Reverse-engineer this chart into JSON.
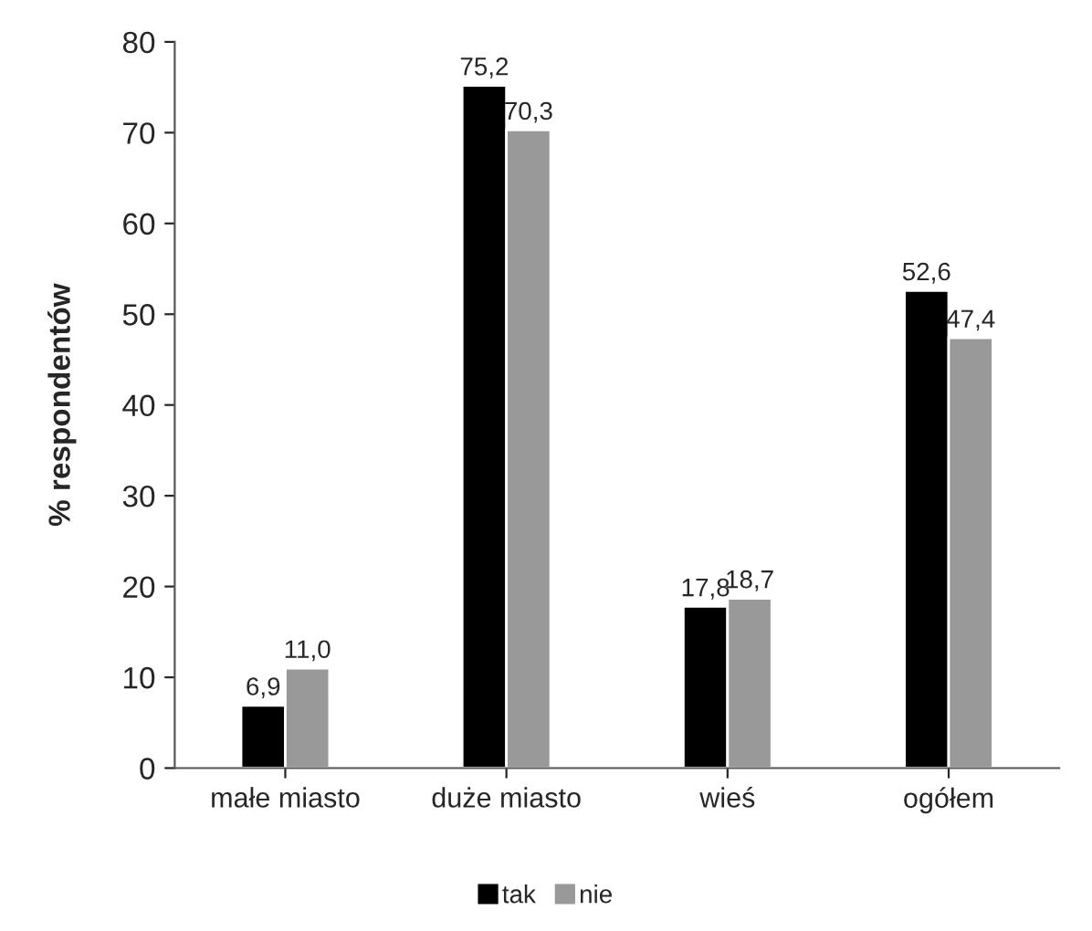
{
  "chart_data": {
    "type": "bar",
    "ylabel": "% respondentów",
    "categories": [
      "małe miasto",
      "duże miasto",
      "wieś",
      "ogółem"
    ],
    "series": [
      {
        "name": "tak",
        "color": "#000000",
        "values": [
          6.9,
          75.2,
          17.8,
          52.6
        ],
        "value_labels": [
          "6,9",
          "75,2",
          "17,8",
          "52,6"
        ]
      },
      {
        "name": "nie",
        "color": "#999999",
        "values": [
          11.0,
          70.3,
          18.7,
          47.4
        ],
        "value_labels": [
          "11,0",
          "70,3",
          "18,7",
          "47,4"
        ]
      }
    ],
    "ylim": [
      0,
      80
    ],
    "yticks": [
      0,
      10,
      20,
      30,
      40,
      50,
      60,
      70,
      80
    ],
    "grid": false,
    "legend": "bottom"
  }
}
